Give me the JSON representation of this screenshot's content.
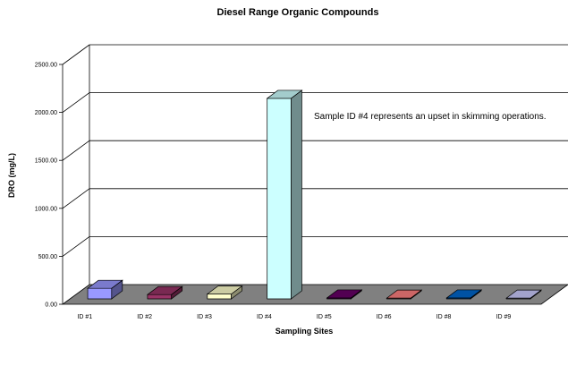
{
  "chart_data": {
    "type": "bar",
    "three_d": true,
    "title": "Diesel Range Organic Compounds",
    "xlabel": "Sampling Sites",
    "ylabel": "DRO (mg/L)",
    "ylim": [
      0,
      2500
    ],
    "ytick_labels": [
      "0.00",
      "500.00",
      "1000.00",
      "1500.00",
      "2000.00",
      "2500.00"
    ],
    "grid": true,
    "categories": [
      "ID #1",
      "ID #2",
      "ID #3",
      "ID #4",
      "ID #5",
      "ID #6",
      "ID #8",
      "ID #9"
    ],
    "values": [
      110,
      45,
      50,
      2090,
      10,
      8,
      10,
      8
    ],
    "bar_colors": [
      "#9999ff",
      "#993366",
      "#ffffcc",
      "#ccffff",
      "#660066",
      "#ff8080",
      "#0066cc",
      "#ccccff"
    ],
    "floor_color": "#808080",
    "annotation": "Sample ID #4 represents an upset in skimming operations."
  }
}
